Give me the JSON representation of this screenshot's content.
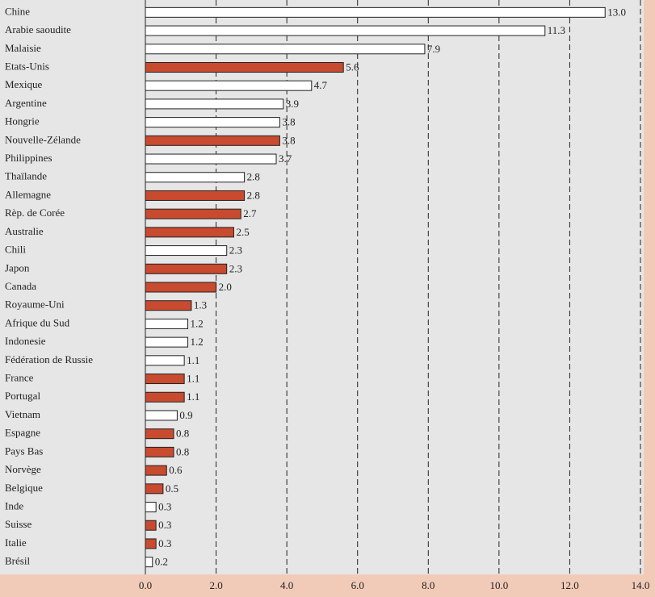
{
  "chart_data": {
    "type": "barh",
    "categories": [
      "Chine",
      "Arabie saoudite",
      "Malaisie",
      "Etats-Unis",
      "Mexique",
      "Argentine",
      "Hongrie",
      "Nouvelle-Zélande",
      "Philippines",
      "Thaïlande",
      "Allemagne",
      "Rèp. de Corée",
      "Australie",
      "Chili",
      "Japon",
      "Canada",
      "Royaume-Uni",
      "Afrique du Sud",
      "Indonesie",
      "Fédération de Russie",
      "France",
      "Portugal",
      "Vietnam",
      "Espagne",
      "Pays Bas",
      "Norvège",
      "Belgique",
      "Inde",
      "Suisse",
      "Italie",
      "Brésil"
    ],
    "values": [
      13.0,
      11.3,
      7.9,
      5.6,
      4.7,
      3.9,
      3.8,
      3.8,
      3.7,
      2.8,
      2.8,
      2.7,
      2.5,
      2.3,
      2.3,
      2.0,
      1.3,
      1.2,
      1.2,
      1.1,
      1.1,
      1.1,
      0.9,
      0.8,
      0.8,
      0.6,
      0.5,
      0.3,
      0.3,
      0.3,
      0.2
    ],
    "value_labels": [
      "13.0",
      "11.3",
      "7.9",
      "5.6",
      "4.7",
      "3.9",
      "3.8",
      "3.8",
      "3.7",
      "2.8",
      "2.8",
      "2.7",
      "2.5",
      "2.3",
      "2.3",
      "2.0",
      "1.3",
      "1.2",
      "1.2",
      "1.1",
      "1.1",
      "1.1",
      "0.9",
      "0.8",
      "0.8",
      "0.6",
      "0.5",
      "0.3",
      "0.3",
      "0.3",
      "0.2"
    ],
    "colors": [
      "#ffffff",
      "#ffffff",
      "#ffffff",
      "#c84a2f",
      "#ffffff",
      "#ffffff",
      "#ffffff",
      "#c84a2f",
      "#ffffff",
      "#ffffff",
      "#c84a2f",
      "#c84a2f",
      "#c84a2f",
      "#ffffff",
      "#c84a2f",
      "#c84a2f",
      "#c84a2f",
      "#ffffff",
      "#ffffff",
      "#ffffff",
      "#c84a2f",
      "#c84a2f",
      "#ffffff",
      "#c84a2f",
      "#c84a2f",
      "#c84a2f",
      "#c84a2f",
      "#ffffff",
      "#c84a2f",
      "#c84a2f",
      "#ffffff"
    ],
    "xlim": [
      0,
      14
    ],
    "xticks": [
      {
        "value": 0,
        "label": "0.0"
      },
      {
        "value": 2,
        "label": "2.0"
      },
      {
        "value": 4,
        "label": "4.0"
      },
      {
        "value": 6,
        "label": "6.0"
      },
      {
        "value": 8,
        "label": "8.0"
      },
      {
        "value": 10,
        "label": "10.0"
      },
      {
        "value": 12,
        "label": "12.0"
      },
      {
        "value": 14,
        "label": "14.0"
      }
    ],
    "grid": true
  }
}
